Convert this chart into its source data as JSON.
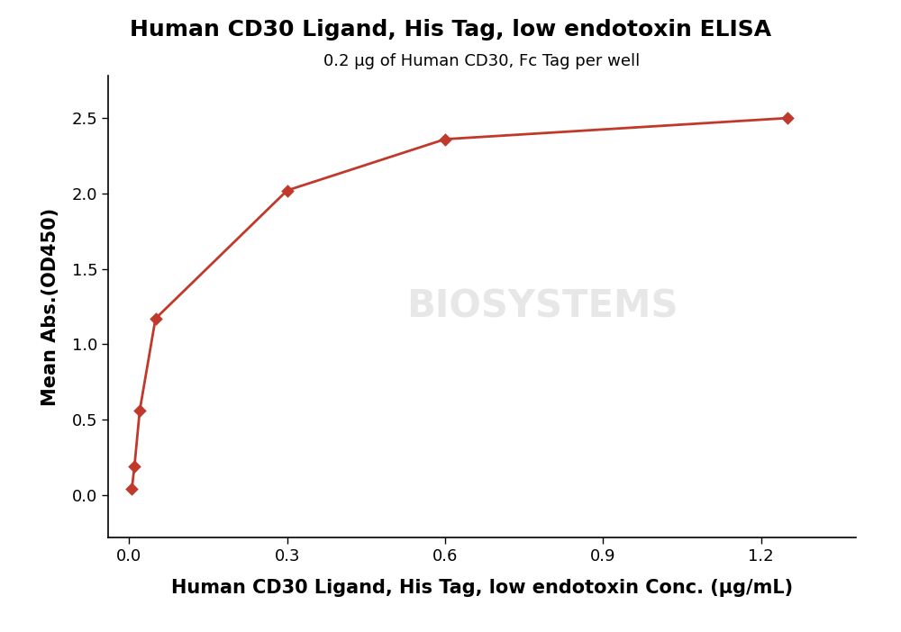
{
  "title": "Human CD30 Ligand, His Tag, low endotoxin ELISA",
  "subtitle": "0.2 μg of Human CD30, Fc Tag per well",
  "xlabel": "Human CD30 Ligand, His Tag, low endotoxin Conc. (μg/mL)",
  "ylabel": "Mean Abs.(OD450)",
  "x_data": [
    0.005,
    0.01,
    0.02,
    0.05,
    0.3,
    0.6,
    1.25
  ],
  "y_data": [
    0.04,
    0.19,
    0.56,
    1.17,
    2.02,
    2.36,
    2.5
  ],
  "color": "#c0392b",
  "xlim": [
    -0.04,
    1.38
  ],
  "ylim": [
    -0.28,
    2.78
  ],
  "xticks": [
    0.0,
    0.3,
    0.6,
    0.9,
    1.2
  ],
  "yticks": [
    0.0,
    0.5,
    1.0,
    1.5,
    2.0,
    2.5
  ],
  "title_fontsize": 18,
  "subtitle_fontsize": 13,
  "label_fontsize": 15,
  "tick_fontsize": 13,
  "watermark": "BIOSYSTEMS",
  "background_color": "#ffffff"
}
